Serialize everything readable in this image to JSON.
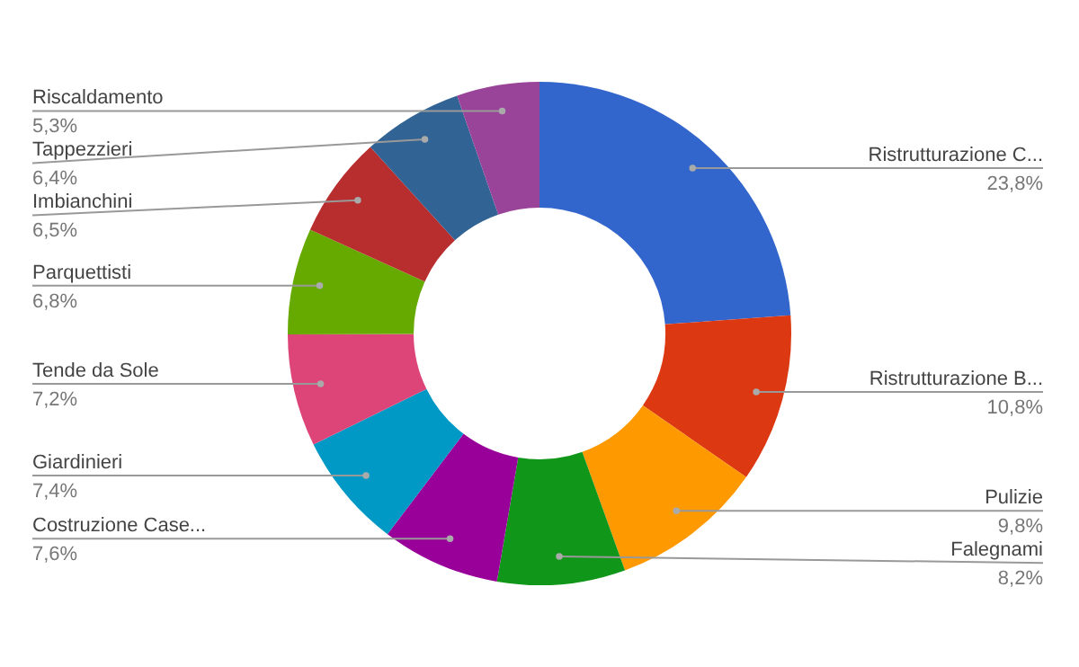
{
  "chart_data": {
    "type": "donut",
    "categories": [
      "Ristrutturazione C...",
      "Ristrutturazione B...",
      "Pulizie",
      "Falegnami",
      "Costruzione Case...",
      "Giardinieri",
      "Tende da Sole",
      "Parquettisti",
      "Imbianchini",
      "Tappezzieri",
      "Riscaldamento"
    ],
    "values": [
      23.8,
      10.8,
      9.8,
      8.2,
      7.6,
      7.4,
      7.2,
      6.8,
      6.5,
      6.4,
      5.3
    ],
    "value_labels": [
      "23,8%",
      "10,8%",
      "9,8%",
      "8,2%",
      "7,6%",
      "7,4%",
      "7,2%",
      "6,8%",
      "6,5%",
      "6,4%",
      "5,3%"
    ],
    "colors": [
      "#3366cc",
      "#dc3912",
      "#ff9900",
      "#109618",
      "#990099",
      "#0099c6",
      "#dd4477",
      "#66aa00",
      "#b82e2e",
      "#316395",
      "#994499"
    ]
  }
}
